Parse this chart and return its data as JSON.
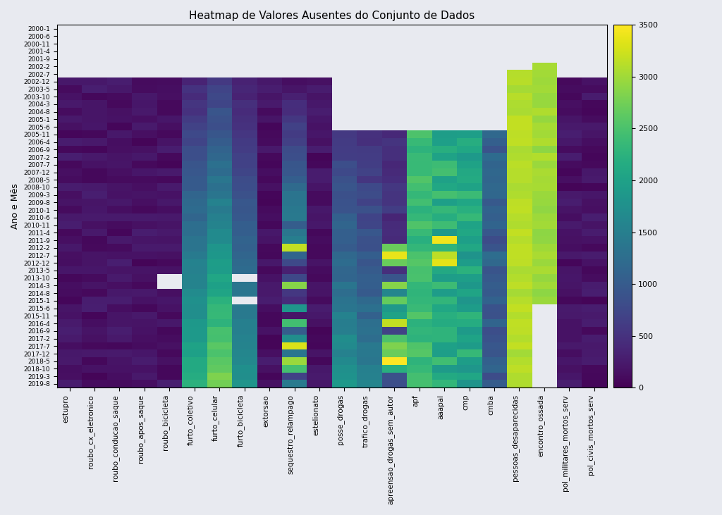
{
  "title": "Heatmap de Valores Ausentes do Conjunto de Dados",
  "ylabel": "Ano e Mês",
  "colormap": "viridis",
  "vmin": 0,
  "vmax": 3500,
  "background_color": "#e8eaf0",
  "columns": [
    "estupro",
    "roubo_cx_eletronico",
    "roubo_conducao_saque",
    "roubo_apos_saque",
    "roubo_bicicleta",
    "furto_coletivo",
    "furto_celular",
    "furto_bicicleta",
    "extorsao",
    "sequestro_relampago",
    "estelionato",
    "posse_drogas",
    "trafico_drogas",
    "apreensao_drogas_sem_autor",
    "apf",
    "aaapal",
    "cmp",
    "cmba",
    "pessoas_desaparecidas",
    "encontro_ossada",
    "pol_militares_mortos_serv",
    "pol_civis_mortos_serv"
  ],
  "rows": [
    "2000-1",
    "2000-6",
    "2000-11",
    "2001-4",
    "2001-9",
    "2002-2",
    "2002-7",
    "2002-12",
    "2003-5",
    "2003-10",
    "2004-3",
    "2004-8",
    "2005-1",
    "2005-6",
    "2005-11",
    "2006-4",
    "2006-9",
    "2007-2",
    "2007-7",
    "2007-12",
    "2008-5",
    "2008-10",
    "2009-3",
    "2009-8",
    "2010-1",
    "2010-6",
    "2010-11",
    "2011-4",
    "2011-9",
    "2012-2",
    "2012-7",
    "2012-12",
    "2013-5",
    "2013-10",
    "2014-3",
    "2014-8",
    "2015-1",
    "2015-6",
    "2015-11",
    "2016-4",
    "2016-9",
    "2017-2",
    "2017-7",
    "2017-12",
    "2018-5",
    "2018-10",
    "2019-3",
    "2019-8"
  ],
  "colorbar_ticks": [
    0,
    500,
    1000,
    1500,
    2000,
    2500,
    3000,
    3500
  ],
  "figsize": [
    10.24,
    7.31
  ],
  "dpi": 100
}
